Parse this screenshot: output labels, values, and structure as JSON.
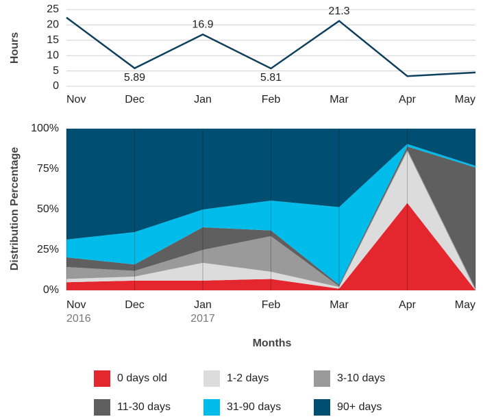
{
  "chart_data": [
    {
      "type": "line",
      "ylabel": "Hours",
      "categories": [
        "Nov",
        "Dec",
        "Jan",
        "Feb",
        "Mar",
        "Apr",
        "May"
      ],
      "values": [
        22.4,
        5.89,
        16.9,
        5.81,
        21.3,
        3.3,
        4.5
      ],
      "value_labels": [
        null,
        "5.89",
        "16.9",
        "5.81",
        "21.3",
        null,
        null
      ],
      "color": "#0d3f5e",
      "ylim": [
        0,
        25
      ],
      "yticks": [
        0,
        5,
        10,
        15,
        20,
        25
      ],
      "grid": true
    },
    {
      "type": "stacked_area",
      "xlabel": "Months",
      "ylabel": "Distribution Percentage",
      "categories": [
        "Nov",
        "Dec",
        "Jan",
        "Feb",
        "Mar",
        "Apr",
        "May"
      ],
      "years": [
        "2016",
        null,
        "2017",
        null,
        null,
        null,
        null
      ],
      "series": [
        {
          "name": "0 days old",
          "color": "#e4262e",
          "values": [
            5,
            6,
            6,
            7,
            1,
            54,
            0
          ]
        },
        {
          "name": "1-2 days",
          "color": "#dcdcdc",
          "values": [
            2,
            2.5,
            11,
            4.5,
            1,
            32,
            0
          ]
        },
        {
          "name": "3-10 days",
          "color": "#9a9a9a",
          "values": [
            7.4,
            3.5,
            8,
            22,
            0.5,
            1,
            1
          ]
        },
        {
          "name": "11-30 days",
          "color": "#5f5f5f",
          "values": [
            6,
            4,
            14,
            3.5,
            0.9,
            2,
            75
          ]
        },
        {
          "name": "31-90 days",
          "color": "#00bceb",
          "values": [
            11,
            20,
            11,
            18.5,
            48.1,
            1.5,
            1
          ]
        },
        {
          "name": "90+ days",
          "color": "#004e71",
          "values": [
            68.6,
            64,
            50,
            44.5,
            48.5,
            9.5,
            23
          ]
        }
      ],
      "ylim": [
        0,
        100
      ],
      "yticks": [
        {
          "value": 0,
          "label": "0%"
        },
        {
          "value": 25,
          "label": "25%"
        },
        {
          "value": 50,
          "label": "50%"
        },
        {
          "value": 75,
          "label": "75%"
        },
        {
          "value": 100,
          "label": "100%"
        }
      ],
      "grid": true,
      "legend": "bottom"
    }
  ]
}
